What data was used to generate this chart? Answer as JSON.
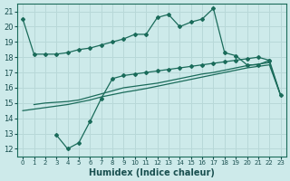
{
  "xlabel": "Humidex (Indice chaleur)",
  "background_color": "#cdeaea",
  "grid_color": "#b8d8d8",
  "line_color": "#1a6b5a",
  "xlim": [
    -0.5,
    23.5
  ],
  "ylim": [
    11.5,
    21.5
  ],
  "yticks": [
    12,
    13,
    14,
    15,
    16,
    17,
    18,
    19,
    20,
    21
  ],
  "xticks": [
    0,
    1,
    2,
    3,
    4,
    5,
    6,
    7,
    8,
    9,
    10,
    11,
    12,
    13,
    14,
    15,
    16,
    17,
    18,
    19,
    20,
    21,
    22,
    23
  ],
  "line1_x": [
    0,
    1,
    2,
    3,
    4,
    5,
    6,
    7,
    8,
    9,
    10,
    11,
    12,
    13,
    14,
    15,
    16,
    17,
    18,
    19,
    20,
    21,
    22
  ],
  "line1_y": [
    20.5,
    18.2,
    18.2,
    18.2,
    18.3,
    18.5,
    18.6,
    18.8,
    19.0,
    19.2,
    19.5,
    19.5,
    20.6,
    20.8,
    20.0,
    20.3,
    20.5,
    21.2,
    18.3,
    18.1,
    17.5,
    17.5,
    17.8
  ],
  "line2_x": [
    3,
    4,
    5,
    6,
    7,
    8,
    9,
    10,
    11,
    12,
    13,
    14,
    15,
    16,
    17,
    18,
    19,
    20,
    21,
    22,
    23
  ],
  "line2_y": [
    12.9,
    12.0,
    12.4,
    13.8,
    15.3,
    16.6,
    16.8,
    16.9,
    17.0,
    17.1,
    17.2,
    17.3,
    17.4,
    17.5,
    17.6,
    17.7,
    17.8,
    17.9,
    18.0,
    17.8,
    15.5
  ],
  "line3_x": [
    1,
    2,
    3,
    4,
    5,
    6,
    7,
    8,
    9,
    10,
    11,
    12,
    13,
    14,
    15,
    16,
    17,
    18,
    19,
    20,
    21,
    22,
    23
  ],
  "line3_y": [
    14.9,
    15.0,
    15.05,
    15.1,
    15.2,
    15.4,
    15.6,
    15.8,
    16.0,
    16.1,
    16.2,
    16.3,
    16.45,
    16.6,
    16.75,
    16.9,
    17.0,
    17.15,
    17.3,
    17.45,
    17.55,
    17.65,
    15.5
  ],
  "line4_x": [
    0,
    1,
    2,
    3,
    4,
    5,
    6,
    7,
    8,
    9,
    10,
    11,
    12,
    13,
    14,
    15,
    16,
    17,
    18,
    19,
    20,
    21,
    22,
    23
  ],
  "line4_y": [
    14.5,
    14.6,
    14.7,
    14.8,
    14.9,
    15.05,
    15.2,
    15.4,
    15.55,
    15.7,
    15.82,
    15.95,
    16.1,
    16.25,
    16.4,
    16.55,
    16.7,
    16.85,
    17.0,
    17.15,
    17.3,
    17.4,
    17.5,
    15.5
  ]
}
